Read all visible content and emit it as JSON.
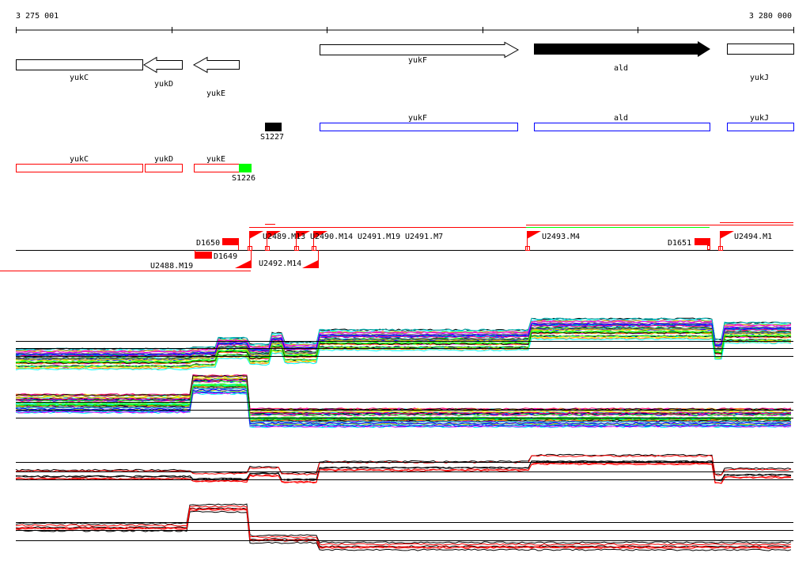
{
  "ruler": {
    "start_label": "3 275 001",
    "end_label": "3 280 000"
  },
  "genes": {
    "yukC": "yukC",
    "yukD": "yukD",
    "yukE": "yukE",
    "yukF": "yukF",
    "ald": "ald",
    "yukJ": "yukJ"
  },
  "blue_track": {
    "yukF": "yukF",
    "ald": "ald",
    "yukJ": "yukJ",
    "S1227": "S1227"
  },
  "red_track": {
    "yukC": "yukC",
    "yukD": "yukD",
    "yukE": "yukE",
    "S1226": "S1226"
  },
  "features": {
    "D1650": "D1650",
    "D1649": "D1649",
    "D1651": "D1651",
    "U2488": "U2488.M19",
    "U2489": "U2489.M13",
    "U2490": "U2490.M14",
    "U2491": "U2491.M19",
    "U2491b": "U2491.M7",
    "U2492": "U2492.M14",
    "U2493": "U2493.M4",
    "U2494": "U2494.M1"
  },
  "colors": {
    "red": "#ff0000",
    "blue": "#0000ff",
    "green": "#00ff00",
    "black": "#000000"
  }
}
